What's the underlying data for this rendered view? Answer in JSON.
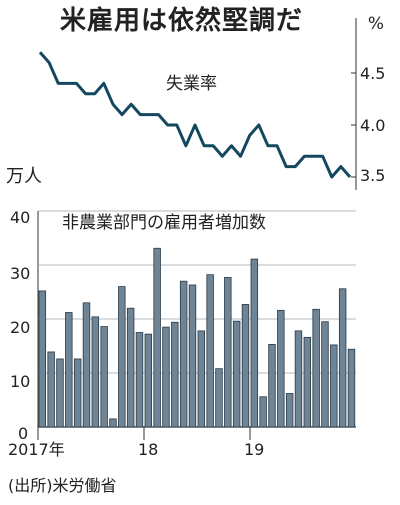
{
  "title": "米雇用は依然堅調だ",
  "source": "(出所)米労働省",
  "charts": [
    {
      "label": "失業率",
      "unit": "%",
      "y_ticks": [
        "4.5",
        "4.0",
        "3.5"
      ]
    },
    {
      "label": "非農業部門の雇用者増加数",
      "unit": "万人",
      "y_ticks": [
        "40",
        "30",
        "20",
        "10",
        "0"
      ],
      "x_ticks": [
        "2017年",
        "18",
        "19"
      ]
    }
  ],
  "chart_data": [
    {
      "type": "line",
      "title": "失業率",
      "ylabel": "%",
      "ylim": [
        3.45,
        4.8
      ],
      "x": [
        "2017-01",
        "2017-02",
        "2017-03",
        "2017-04",
        "2017-05",
        "2017-06",
        "2017-07",
        "2017-08",
        "2017-09",
        "2017-10",
        "2017-11",
        "2017-12",
        "2018-01",
        "2018-02",
        "2018-03",
        "2018-04",
        "2018-05",
        "2018-06",
        "2018-07",
        "2018-08",
        "2018-09",
        "2018-10",
        "2018-11",
        "2018-12",
        "2019-01",
        "2019-02",
        "2019-03",
        "2019-04",
        "2019-05",
        "2019-06",
        "2019-07",
        "2019-08",
        "2019-09",
        "2019-10",
        "2019-11"
      ],
      "values": [
        4.7,
        4.6,
        4.4,
        4.4,
        4.4,
        4.3,
        4.3,
        4.4,
        4.2,
        4.1,
        4.2,
        4.1,
        4.1,
        4.1,
        4.0,
        4.0,
        3.8,
        4.0,
        3.8,
        3.8,
        3.7,
        3.8,
        3.7,
        3.9,
        4.0,
        3.8,
        3.8,
        3.6,
        3.6,
        3.7,
        3.7,
        3.7,
        3.5,
        3.6,
        3.5
      ],
      "color": "#14485f"
    },
    {
      "type": "bar",
      "title": "非農業部門の雇用者増加数",
      "ylabel": "万人",
      "ylim": [
        0,
        40
      ],
      "categories": [
        "2017-01",
        "2017-02",
        "2017-03",
        "2017-04",
        "2017-05",
        "2017-06",
        "2017-07",
        "2017-08",
        "2017-09",
        "2017-10",
        "2017-11",
        "2017-12",
        "2018-01",
        "2018-02",
        "2018-03",
        "2018-04",
        "2018-05",
        "2018-06",
        "2018-07",
        "2018-08",
        "2018-09",
        "2018-10",
        "2018-11",
        "2018-12",
        "2019-01",
        "2019-02",
        "2019-03",
        "2019-04",
        "2019-05",
        "2019-06",
        "2019-07",
        "2019-08",
        "2019-09",
        "2019-10",
        "2019-11"
      ],
      "values": [
        25.2,
        13.9,
        12.6,
        21.2,
        12.6,
        23.0,
        20.4,
        18.6,
        1.5,
        26.0,
        22.0,
        17.5,
        17.2,
        33.1,
        18.5,
        19.4,
        27.0,
        26.3,
        17.8,
        28.2,
        10.8,
        27.7,
        19.6,
        22.7,
        31.1,
        5.6,
        15.3,
        21.6,
        6.2,
        17.8,
        16.6,
        21.8,
        19.5,
        15.2,
        25.6
      ],
      "extra_values_tail": [
        14.4
      ],
      "color": "#6f8495",
      "grid": true
    }
  ]
}
